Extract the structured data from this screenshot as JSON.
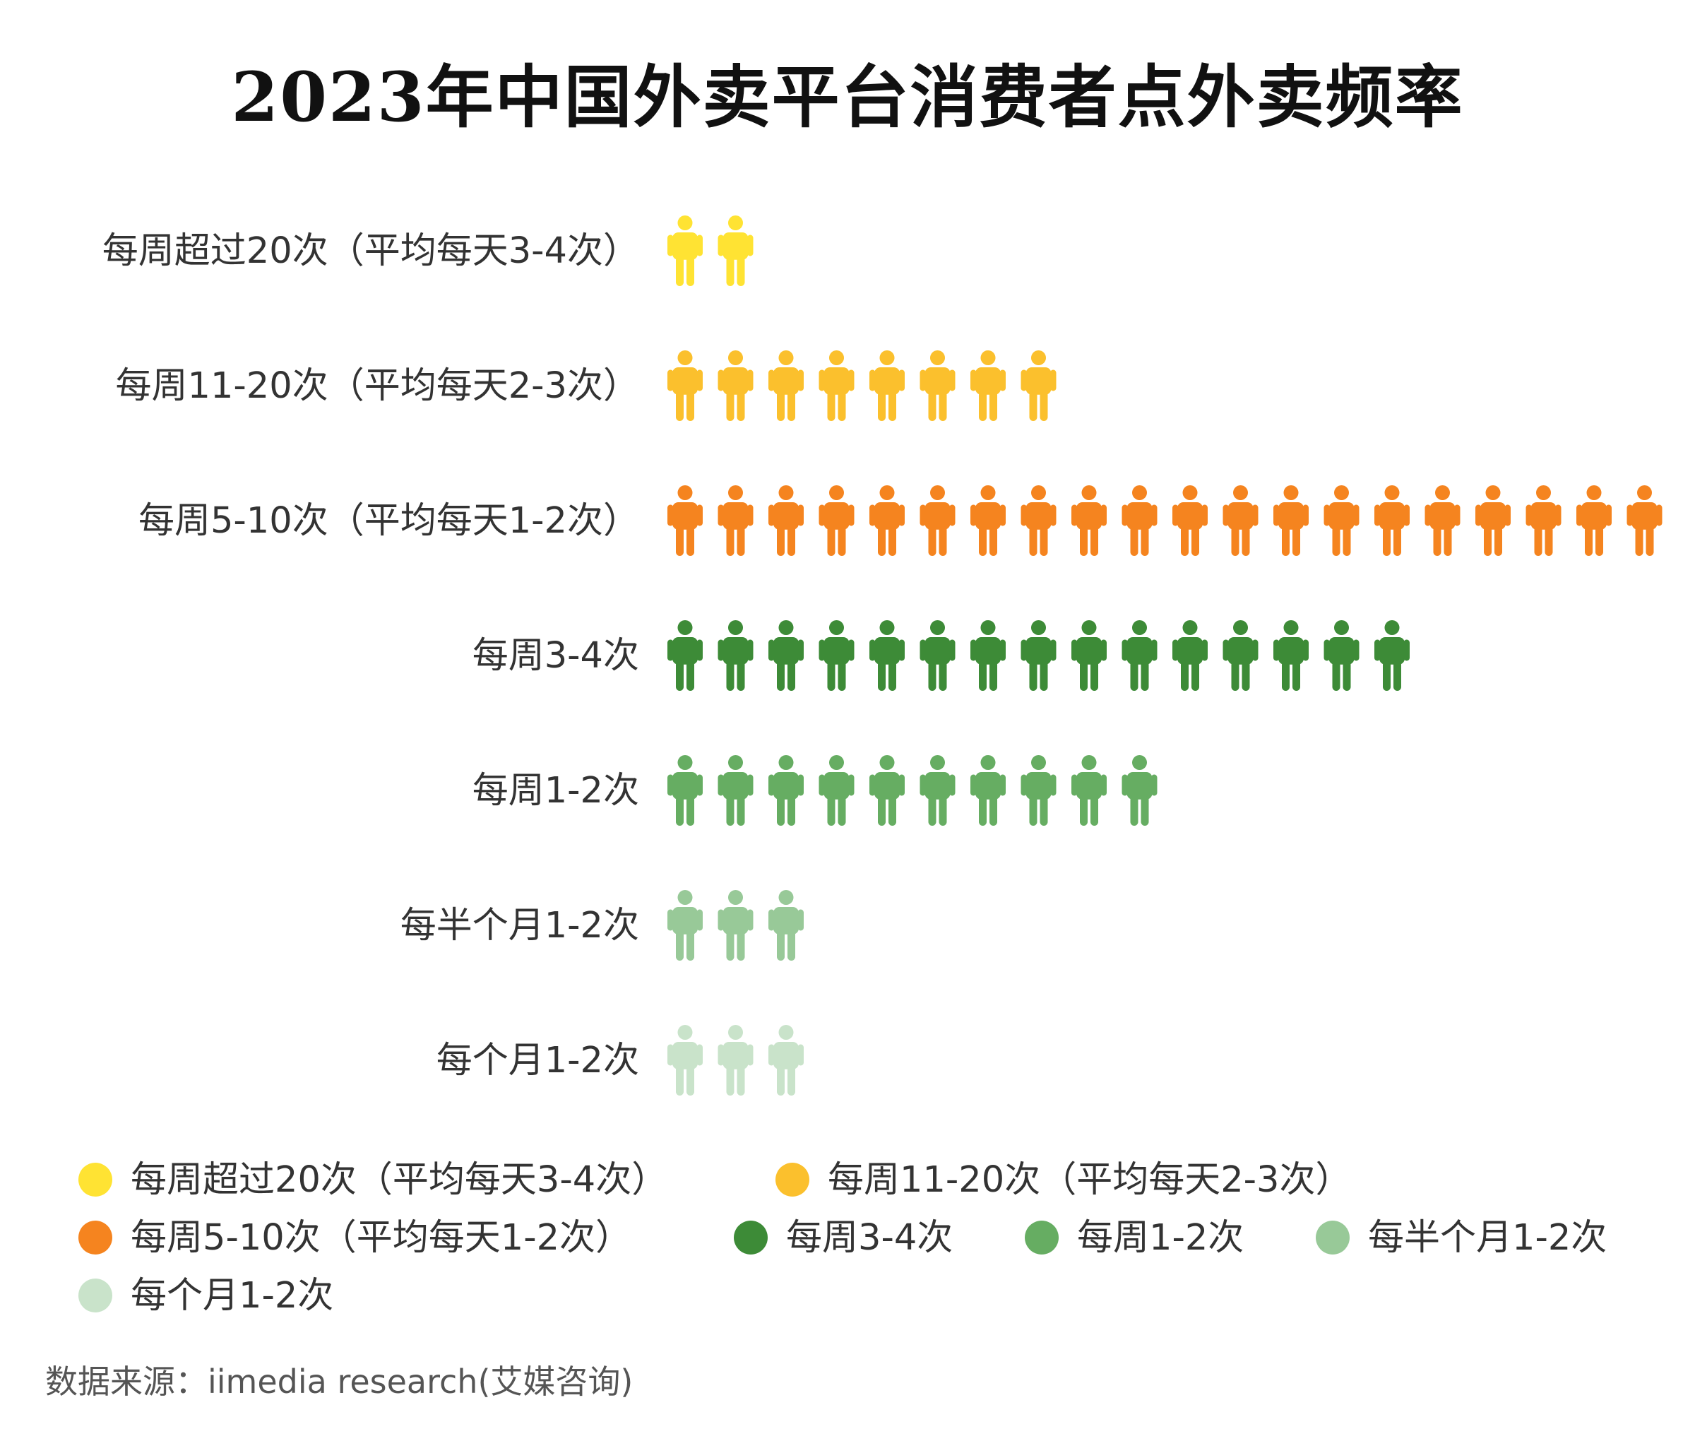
{
  "title": "2023年中国外卖平台消费者点外卖频率",
  "source": "数据来源：iimedia research(艾媒咨询)",
  "chart_data": {
    "type": "pictograph",
    "title": "2023年中国外卖平台消费者点外卖频率",
    "icon": "person-icon",
    "categories": [
      "每周超过20次（平均每天3-4次）",
      "每周11-20次（平均每天2-3次）",
      "每周5-10次（平均每天1-2次）",
      "每周3-4次",
      "每周1-2次",
      "每半个月1-2次",
      "每个月1-2次"
    ],
    "values": [
      2,
      8,
      20,
      15,
      10,
      3,
      3
    ],
    "colors": [
      "#FFE333",
      "#FBC02D",
      "#F5841F",
      "#3D8B37",
      "#66AD62",
      "#98C998",
      "#C9E3CA"
    ],
    "legend": [
      {
        "label": "每周超过20次（平均每天3-4次）",
        "color": "#FFE333"
      },
      {
        "label": "每周11-20次（平均每天2-3次）",
        "color": "#FBC02D"
      },
      {
        "label": "每周5-10次（平均每天1-2次）",
        "color": "#F5841F"
      },
      {
        "label": "每周3-4次",
        "color": "#3D8B37"
      },
      {
        "label": "每周1-2次",
        "color": "#66AD62"
      },
      {
        "label": "每半个月1-2次",
        "color": "#98C998"
      },
      {
        "label": "每个月1-2次",
        "color": "#C9E3CA"
      }
    ],
    "legend_position": "bottom"
  }
}
